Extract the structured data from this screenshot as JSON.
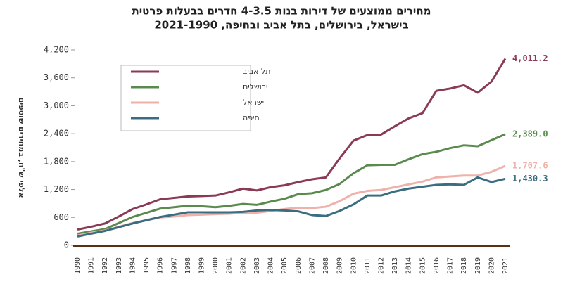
{
  "chart_data": {
    "type": "line",
    "title": "מחירים ממוצעים של דירות בנות 4-3.5 חדרים בבעלות פרטית",
    "subtitle": "בישראל, בירושלים, בתל אביב ובחיפה, 2021-1990",
    "y_label": "אלפי ש\"ח, במחירים שוטפים",
    "categories": [
      "1990",
      "1991",
      "1992",
      "1993",
      "1994",
      "1995",
      "1996",
      "1997",
      "1998",
      "1999",
      "2000",
      "2001",
      "2002",
      "2003",
      "2004",
      "2005",
      "2006",
      "2007",
      "2008",
      "2009",
      "2010",
      "2011",
      "2012",
      "2013",
      "2014",
      "2015",
      "2016",
      "2017",
      "2018",
      "2019",
      "2020",
      "2021"
    ],
    "ylim": [
      0,
      4200
    ],
    "yticks": [
      0,
      {
        "value": 600,
        "label": "600"
      },
      {
        "value": 1200,
        "label": "1,200"
      },
      {
        "value": 1800,
        "label": "1,800"
      },
      {
        "value": 2400,
        "label": "2,400"
      },
      {
        "value": 3000,
        "label": "3,000"
      },
      {
        "value": 3600,
        "label": "3,600"
      },
      {
        "value": 4200,
        "label": "4,200"
      }
    ],
    "grid": false,
    "legend": "top-left",
    "series": [
      {
        "name": "תל אביב",
        "color": "#8b3a55",
        "values": [
          340,
          400,
          470,
          620,
          780,
          880,
          990,
          1020,
          1050,
          1060,
          1070,
          1140,
          1220,
          1180,
          1250,
          1290,
          1360,
          1420,
          1460,
          1870,
          2250,
          2370,
          2380,
          2560,
          2730,
          2840,
          3320,
          3370,
          3440,
          3280,
          3520,
          4011.2
        ],
        "value_labels": {
          "31": "4,011.2"
        }
      },
      {
        "name": "ירושלים",
        "color": "#5b8a4e",
        "values": [
          250,
          300,
          350,
          480,
          610,
          700,
          790,
          820,
          850,
          840,
          820,
          850,
          890,
          870,
          940,
          1000,
          1100,
          1120,
          1190,
          1320,
          1550,
          1720,
          1730,
          1730,
          1850,
          1960,
          2010,
          2090,
          2150,
          2130,
          2260,
          2389.0
        ],
        "value_labels": {
          "31": "2,389.0"
        }
      },
      {
        "name": "ישראל",
        "color": "#efb2ab",
        "values": [
          210,
          270,
          320,
          400,
          480,
          540,
          600,
          620,
          650,
          660,
          670,
          680,
          700,
          700,
          740,
          780,
          810,
          800,
          830,
          950,
          1110,
          1170,
          1190,
          1250,
          1310,
          1370,
          1460,
          1480,
          1500,
          1500,
          1580,
          1707.6
        ],
        "value_labels": {
          "31": "1,707.6"
        }
      },
      {
        "name": "חיפה",
        "color": "#3a6d80",
        "values": [
          190,
          250,
          310,
          390,
          470,
          540,
          610,
          660,
          710,
          710,
          710,
          710,
          720,
          750,
          760,
          750,
          730,
          650,
          630,
          740,
          880,
          1070,
          1070,
          1160,
          1220,
          1260,
          1300,
          1310,
          1300,
          1460,
          1360,
          1430.3
        ],
        "value_labels": {
          "31": "1,430.3"
        }
      }
    ]
  }
}
